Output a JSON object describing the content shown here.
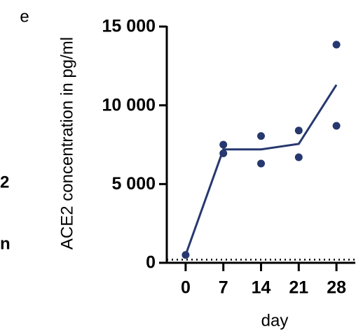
{
  "panel_label": "e",
  "left_fragments": [
    "2",
    "n"
  ],
  "chart_data": {
    "type": "scatter",
    "y_label": "ACE2 concentration in pg/ml",
    "x_label": "day",
    "color": "#27386f",
    "points": {
      "x": [
        0,
        7,
        7,
        14,
        14,
        21,
        21,
        28,
        28
      ],
      "y": [
        500,
        7500,
        6950,
        8050,
        6300,
        8400,
        6700,
        13850,
        8700
      ]
    },
    "line": {
      "x": [
        0,
        7,
        14,
        21,
        28
      ],
      "values": [
        500,
        7200,
        7200,
        7550,
        11300
      ]
    },
    "dotted_line": 200,
    "xlim": [
      -3.5,
      31.5
    ],
    "xticks": [
      0,
      7,
      14,
      21,
      28
    ],
    "ylim": [
      0,
      15000
    ],
    "yticks": [
      0,
      {
        "value": 5000,
        "label": "5 000"
      },
      {
        "value": 10000,
        "label": "10 000"
      },
      {
        "value": 15000,
        "label": "15 000"
      }
    ]
  }
}
